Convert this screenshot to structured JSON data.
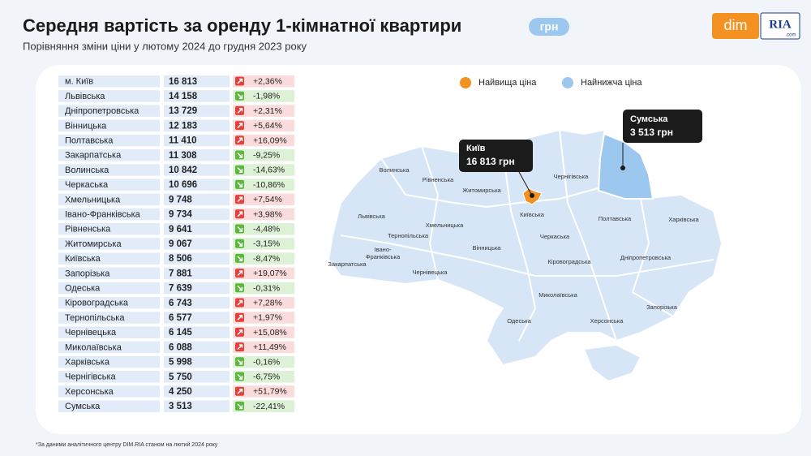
{
  "header": {
    "title": "Середня вартість за оренду 1-кімнатної квартири",
    "unit": "грн",
    "subtitle": "Порівняння зміни ціни у лютому 2024 до грудня 2023 року"
  },
  "logo": {
    "left": "dim",
    "right": "RIA",
    "domain": ".com"
  },
  "table": {
    "rows": [
      [
        "м. Київ",
        "16 813",
        "+2,36%"
      ],
      [
        "Львівська",
        "14 158",
        "-1,98%"
      ],
      [
        "Дніпропетровська",
        "13 729",
        "+2,31%"
      ],
      [
        "Вінницька",
        "12 183",
        "+5,64%"
      ],
      [
        "Полтавська",
        "11 410",
        "+16,09%"
      ],
      [
        "Закарпатська",
        "11 308",
        "-9,25%"
      ],
      [
        "Волинська",
        "10 842",
        "-14,63%"
      ],
      [
        "Черкаська",
        "10 696",
        "-10,86%"
      ],
      [
        "Хмельницька",
        "9 748",
        "+7,54%"
      ],
      [
        "Івано-Франківська",
        "9 734",
        "+3,98%"
      ],
      [
        "Рівненська",
        "9 641",
        "-4,48%"
      ],
      [
        "Житомирська",
        "9 067",
        "-3,15%"
      ],
      [
        "Київська",
        "8 506",
        "-8,47%"
      ],
      [
        "Запорізька",
        "7 881",
        "+19,07%"
      ],
      [
        "Одеська",
        "7 639",
        "-0,31%"
      ],
      [
        "Кіровоградська",
        "6 743",
        "+7,28%"
      ],
      [
        "Тернопільська",
        "6 577",
        "+1,97%"
      ],
      [
        "Чернівецька",
        "6 145",
        "+15,08%"
      ],
      [
        "Миколаївська",
        "6 088",
        "+11,49%"
      ],
      [
        "Харківська",
        "5 998",
        "-0,16%"
      ],
      [
        "Чернігівська",
        "5 750",
        "-6,75%"
      ],
      [
        "Херсонська",
        "4 250",
        "+51,79%"
      ],
      [
        "Сумська",
        "3 513",
        "-22,41%"
      ]
    ]
  },
  "legend": {
    "highest": "Найвища ціна",
    "lowest": "Найнижча ціна"
  },
  "map": {
    "labels": [
      "Волинська",
      "Рівненська",
      "Житомирська",
      "Чернігівська",
      "Київська",
      "Львівська",
      "Хмельницька",
      "Тернопільська",
      "Івано-",
      "Франківська",
      "Закарпатська",
      "Чернівецька",
      "Вінницька",
      "Черкаська",
      "Полтавська",
      "Харківська",
      "Кіровоградська",
      "Дніпропетровська",
      "Миколаївська",
      "Запорізька",
      "Одеська",
      "Херсонська"
    ],
    "callouts": [
      {
        "name": "Київ",
        "value": "16 813 грн"
      },
      {
        "name": "Сумська",
        "value": "3 513 грн"
      }
    ]
  },
  "footnote": "*За даними аналітичного центру DIM.RIA станом на лютий 2024 року"
}
